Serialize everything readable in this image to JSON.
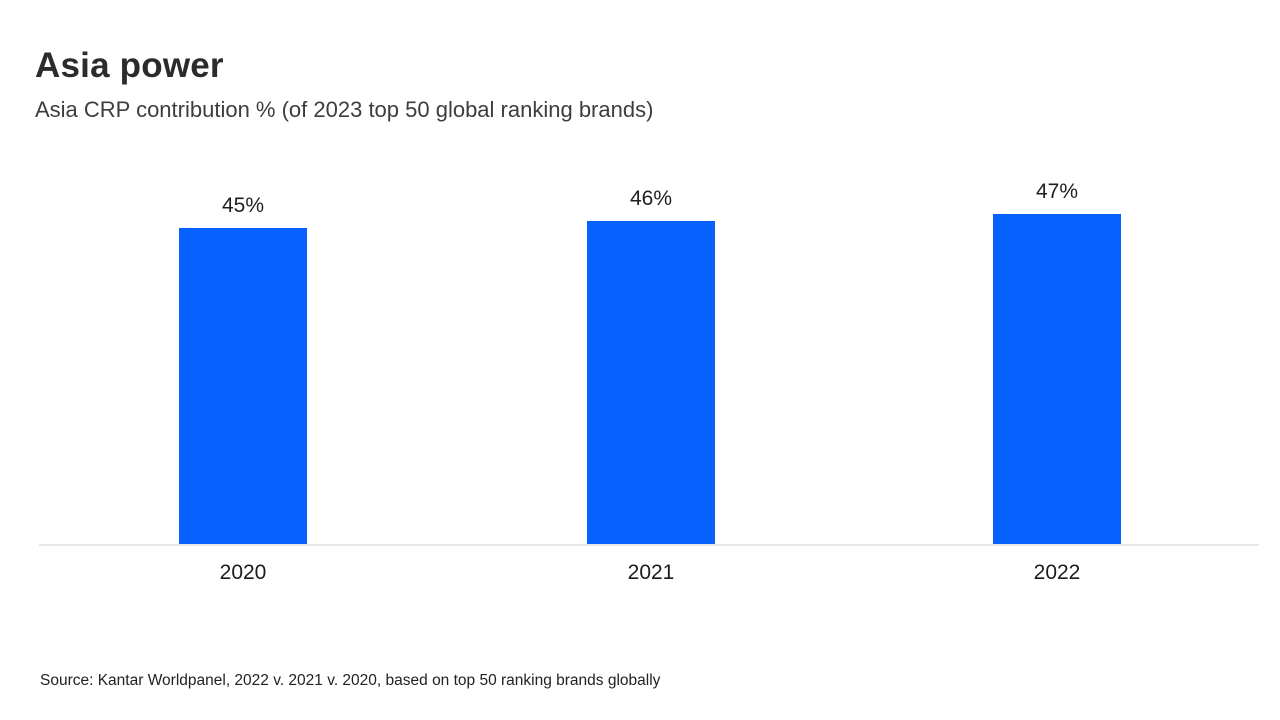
{
  "chart_data": {
    "type": "bar",
    "title": "Asia power",
    "subtitle": "Asia CRP contribution % (of 2023 top 50 global ranking brands)",
    "categories": [
      "2020",
      "2021",
      "2022"
    ],
    "values": [
      45,
      46,
      47
    ],
    "value_labels": [
      "45%",
      "46%",
      "47%"
    ],
    "unit": "%",
    "ylim": [
      0,
      50
    ],
    "grid": false,
    "legend": "none",
    "axis": "baseline-only",
    "bar_color": "#0560fd",
    "baseline_color": "#e8e8e8",
    "text_color": "#262626",
    "background_color": "#ffffff",
    "source": "Source: Kantar Worldpanel, 2022 v. 2021 v. 2020, based on top 50 ranking brands globally"
  }
}
